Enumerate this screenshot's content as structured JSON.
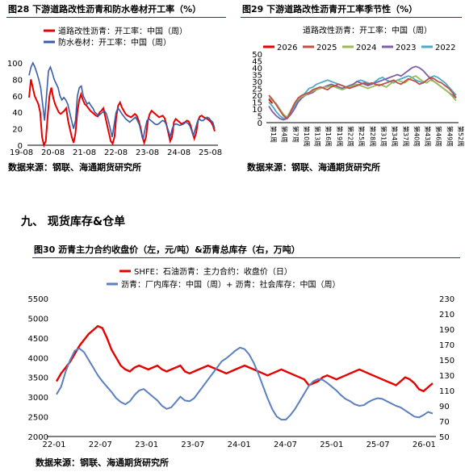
{
  "fig28": {
    "title": "图28 下游道路改性沥青和防水卷材开工率（%）",
    "source": "数据来源：钢联、海通期货研究所",
    "chart_data": {
      "type": "line",
      "x_ticks": [
        "19-08",
        "20-08",
        "21-08",
        "22-08",
        "23-08",
        "24-08",
        "25-08"
      ],
      "ylim": [
        0,
        100
      ],
      "y_ticks": [
        0,
        20,
        40,
        60,
        80,
        100
      ],
      "series": [
        {
          "name": "道路改性沥青：开工率：中国（周）",
          "color": "#e60000",
          "values": [
            58,
            80,
            70,
            60,
            55,
            50,
            40,
            10,
            0,
            5,
            35,
            60,
            70,
            58,
            50,
            45,
            40,
            38,
            40,
            42,
            45,
            30,
            20,
            10,
            3,
            15,
            40,
            55,
            62,
            55,
            50,
            48,
            45,
            42,
            40,
            38,
            36,
            35,
            40,
            42,
            45,
            35,
            25,
            15,
            5,
            2,
            10,
            35,
            48,
            52,
            46,
            42,
            38,
            36,
            35,
            34,
            36,
            38,
            36,
            30,
            22,
            10,
            3,
            10,
            30,
            38,
            42,
            40,
            38,
            36,
            34,
            35,
            36,
            33,
            25,
            15,
            5,
            10,
            28,
            32,
            30,
            28,
            26,
            27,
            28,
            30,
            29,
            24,
            15,
            8,
            15,
            30,
            35,
            36,
            34,
            33,
            32,
            30,
            28,
            24,
            17
          ]
        },
        {
          "name": "防水卷材：开工率：中国（周）",
          "color": "#3a5da9",
          "values": [
            85,
            95,
            100,
            95,
            88,
            80,
            70,
            50,
            30,
            60,
            90,
            95,
            88,
            80,
            75,
            70,
            60,
            55,
            58,
            55,
            50,
            40,
            30,
            20,
            30,
            60,
            70,
            72,
            60,
            55,
            50,
            52,
            48,
            45,
            40,
            38,
            36,
            38,
            40,
            42,
            38,
            30,
            20,
            10,
            25,
            40,
            45,
            42,
            38,
            35,
            32,
            30,
            28,
            30,
            32,
            34,
            30,
            25,
            15,
            8,
            20,
            30,
            32,
            30,
            28,
            26,
            25,
            26,
            28,
            30,
            29,
            25,
            18,
            10,
            20,
            25,
            26,
            25,
            24,
            25,
            26,
            28,
            27,
            24,
            18,
            12,
            20,
            28,
            32,
            30,
            30,
            32,
            34,
            33,
            30,
            28,
            20
          ]
        }
      ]
    }
  },
  "fig29": {
    "title": "图29 下游道路改性沥青开工率季节性（%）",
    "source": "数据来源：钢联、海通期货研究所",
    "chart_data": {
      "type": "line",
      "subtitle": "道路改性沥青：开工率：中国（周）",
      "ylim": [
        0,
        50
      ],
      "y_ticks": [
        0,
        5,
        10,
        15,
        20,
        25,
        30,
        35,
        40,
        45,
        50
      ],
      "x_ticks": [
        "第1周",
        "第4周",
        "第7周",
        "第10周",
        "第13周",
        "第16周",
        "第19周",
        "第22周",
        "第25周",
        "第28周",
        "第31周",
        "第34周",
        "第37周",
        "第40周",
        "第43周",
        "第46周",
        "第49周",
        "第52周"
      ],
      "series": [
        {
          "name": "2026",
          "color": "#e60000",
          "values": [
            17,
            14
          ]
        },
        {
          "name": "2025",
          "color": "#c0504d",
          "values": [
            20,
            17,
            13,
            9,
            5,
            3,
            8,
            14,
            18,
            20,
            21,
            22,
            24,
            25,
            26,
            25,
            24,
            26,
            27,
            28,
            27,
            26,
            25,
            26,
            27,
            28,
            29,
            28,
            29,
            28,
            27,
            28,
            29,
            30,
            31,
            29,
            28,
            30,
            32,
            31,
            30,
            28,
            29,
            31,
            33,
            32,
            30,
            29,
            27,
            25,
            22,
            18
          ]
        },
        {
          "name": "2024",
          "color": "#9bbb59",
          "values": [
            18,
            16,
            14,
            10,
            6,
            4,
            9,
            14,
            17,
            19,
            20,
            22,
            23,
            24,
            25,
            26,
            26,
            27,
            26,
            25,
            24,
            25,
            26,
            27,
            28,
            27,
            26,
            25,
            26,
            27,
            28,
            27,
            26,
            28,
            30,
            31,
            30,
            29,
            31,
            33,
            34,
            32,
            30,
            29,
            31,
            30,
            28,
            26,
            24,
            22,
            19,
            16
          ]
        },
        {
          "name": "2023",
          "color": "#7f5fa8",
          "values": [
            12,
            8,
            5,
            3,
            2,
            3,
            6,
            10,
            15,
            18,
            20,
            21,
            22,
            24,
            25,
            26,
            27,
            28,
            27,
            26,
            25,
            26,
            27,
            28,
            30,
            29,
            28,
            27,
            28,
            29,
            30,
            31,
            32,
            33,
            34,
            35,
            34,
            36,
            38,
            40,
            41,
            40,
            38,
            35,
            32,
            30,
            28,
            26,
            24,
            22,
            20,
            18
          ]
        },
        {
          "name": "2022",
          "color": "#4bacc6",
          "values": [
            15,
            12,
            8,
            5,
            3,
            4,
            8,
            12,
            16,
            19,
            22,
            25,
            26,
            28,
            29,
            30,
            31,
            30,
            29,
            28,
            27,
            26,
            25,
            28,
            30,
            31,
            30,
            29,
            28,
            30,
            32,
            33,
            31,
            30,
            29,
            31,
            32,
            33,
            34,
            33,
            31,
            30,
            29,
            31,
            33,
            34,
            33,
            31,
            29,
            26,
            23,
            20
          ]
        }
      ]
    }
  },
  "section_heading": "九、 现货库存&仓单",
  "fig30": {
    "title": "图30 沥青主力合约收盘价（左，元/吨）&沥青总库存（右，万吨）",
    "source": "数据来源：钢联、海通期货研究所",
    "chart_data": {
      "type": "line",
      "x_ticks": [
        "22-01",
        "22-07",
        "23-01",
        "23-07",
        "24-01",
        "24-07",
        "25-01",
        "25-07",
        "26-01"
      ],
      "ylim": [
        2000,
        5500
      ],
      "y_ticks": [
        2000,
        2500,
        3000,
        3500,
        4000,
        4500,
        5000,
        5500
      ],
      "y2lim": [
        50,
        230
      ],
      "y2_ticks": [
        50,
        70,
        90,
        110,
        130,
        150,
        170,
        190,
        210,
        230
      ],
      "series": [
        {
          "name": "SHFE：石油沥青：主力合约：收盘价（日）",
          "color": "#e60000",
          "axis": "left",
          "values": [
            3400,
            3600,
            3750,
            3900,
            4100,
            4300,
            4450,
            4600,
            4700,
            4800,
            4750,
            4500,
            4200,
            4000,
            3800,
            3700,
            3650,
            3750,
            3800,
            3750,
            3700,
            3750,
            3800,
            3700,
            3650,
            3700,
            3750,
            3800,
            3650,
            3600,
            3650,
            3700,
            3750,
            3800,
            3750,
            3700,
            3650,
            3600,
            3650,
            3700,
            3750,
            3800,
            3750,
            3700,
            3650,
            3600,
            3550,
            3600,
            3650,
            3700,
            3650,
            3600,
            3550,
            3500,
            3450,
            3300,
            3350,
            3400,
            3500,
            3550,
            3500,
            3450,
            3500,
            3550,
            3600,
            3650,
            3700,
            3650,
            3600,
            3550,
            3500,
            3450,
            3400,
            3350,
            3300,
            3400,
            3500,
            3450,
            3350,
            3200,
            3150,
            3250,
            3350
          ]
        },
        {
          "name": "沥青：厂内库存：中国（周）+ 沥青：社会库存：中国（周）",
          "color": "#5b7fbf",
          "axis": "right",
          "values": [
            105,
            115,
            135,
            150,
            162,
            165,
            160,
            150,
            140,
            130,
            122,
            115,
            108,
            100,
            95,
            92,
            96,
            104,
            110,
            112,
            107,
            102,
            97,
            90,
            86,
            88,
            95,
            102,
            97,
            96,
            100,
            108,
            116,
            124,
            132,
            140,
            148,
            152,
            157,
            162,
            166,
            164,
            157,
            146,
            132,
            116,
            100,
            86,
            76,
            72,
            72,
            78,
            86,
            96,
            106,
            116,
            122,
            125,
            124,
            120,
            115,
            110,
            104,
            99,
            96,
            92,
            90,
            91,
            95,
            98,
            100,
            99,
            96,
            93,
            90,
            88,
            84,
            80,
            76,
            75,
            78,
            82,
            80
          ]
        }
      ]
    }
  }
}
